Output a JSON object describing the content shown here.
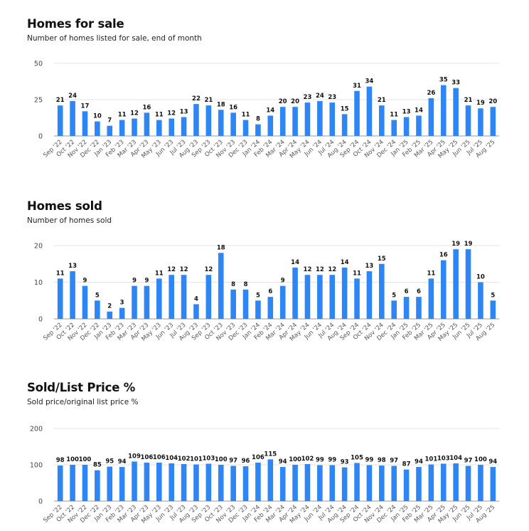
{
  "colors": {
    "bar": "#2e86f5",
    "grid": "#e3e3e3",
    "axis": "#9a9a9a"
  },
  "chart_data": [
    {
      "type": "bar",
      "title": "Homes for sale",
      "subtitle": "Number of homes listed for sale, end of month",
      "ylim": [
        0,
        50
      ],
      "yticks": [
        0,
        25,
        50
      ],
      "grid": true,
      "categories": [
        "Sep '22",
        "Oct '22",
        "Nov '22",
        "Dec '22",
        "Jan '23",
        "Feb '23",
        "Mar '23",
        "Apr '23",
        "May '23",
        "Jun '23",
        "Jul '23",
        "Aug '23",
        "Sep '23",
        "Oct '23",
        "Nov '23",
        "Dec '23",
        "Jan '24",
        "Feb '24",
        "Mar '24",
        "Apr '24",
        "May '24",
        "Jun '24",
        "Jul '24",
        "Aug '24",
        "Sep '24",
        "Oct '24",
        "Nov '24",
        "Dec '24",
        "Jan '25",
        "Feb '25",
        "Mar '25",
        "Apr '25",
        "May '25",
        "Jun '25",
        "Jul '25",
        "Aug '25"
      ],
      "values": [
        21,
        24,
        17,
        10,
        7,
        11,
        12,
        16,
        11,
        12,
        13,
        22,
        21,
        18,
        16,
        11,
        8,
        14,
        20,
        20,
        23,
        24,
        23,
        15,
        31,
        34,
        21,
        11,
        13,
        14,
        26,
        35,
        33,
        21,
        19,
        20
      ]
    },
    {
      "type": "bar",
      "title": "Homes sold",
      "subtitle": "Number of homes sold",
      "ylim": [
        0,
        20
      ],
      "yticks": [
        0,
        10,
        20
      ],
      "grid": true,
      "categories": [
        "Sep '22",
        "Oct '22",
        "Nov '22",
        "Dec '22",
        "Jan '23",
        "Feb '23",
        "Mar '23",
        "Apr '23",
        "May '23",
        "Jun '23",
        "Jul '23",
        "Aug '23",
        "Sep '23",
        "Oct '23",
        "Nov '23",
        "Dec '23",
        "Jan '24",
        "Feb '24",
        "Mar '24",
        "Apr '24",
        "May '24",
        "Jun '24",
        "Jul '24",
        "Aug '24",
        "Sep '24",
        "Oct '24",
        "Nov '24",
        "Dec '24",
        "Jan '25",
        "Feb '25",
        "Mar '25",
        "Apr '25",
        "May '25",
        "Jun '25",
        "Jul '25",
        "Aug '25"
      ],
      "values": [
        11,
        13,
        9,
        5,
        2,
        3,
        9,
        9,
        11,
        12,
        12,
        4,
        12,
        18,
        8,
        8,
        5,
        6,
        9,
        14,
        12,
        12,
        12,
        14,
        11,
        13,
        15,
        5,
        6,
        6,
        11,
        16,
        19,
        19,
        10,
        5
      ]
    },
    {
      "type": "bar",
      "title": "Sold/List Price %",
      "subtitle": "Sold price/original list price %",
      "ylim": [
        0,
        200
      ],
      "yticks": [
        0,
        100,
        200
      ],
      "grid": true,
      "categories": [
        "Sep '22",
        "Oct '22",
        "Nov '22",
        "Dec '22",
        "Jan '23",
        "Feb '23",
        "Mar '23",
        "Apr '23",
        "May '23",
        "Jun '23",
        "Jul '23",
        "Aug '23",
        "Sep '23",
        "Oct '23",
        "Nov '23",
        "Dec '23",
        "Jan '24",
        "Feb '24",
        "Mar '24",
        "Apr '24",
        "May '24",
        "Jun '24",
        "Jul '24",
        "Aug '24",
        "Sep '24",
        "Oct '24",
        "Nov '24",
        "Dec '24",
        "Jan '25",
        "Feb '25",
        "Mar '25",
        "Apr '25",
        "May '25",
        "Jun '25",
        "Jul '25",
        "Aug '25"
      ],
      "values": [
        98,
        100,
        100,
        85,
        95,
        94,
        109,
        106,
        106,
        104,
        102,
        101,
        103,
        100,
        97,
        96,
        106,
        115,
        94,
        100,
        102,
        99,
        99,
        93,
        105,
        99,
        98,
        97,
        87,
        94,
        101,
        103,
        104,
        97,
        100,
        94
      ]
    }
  ]
}
